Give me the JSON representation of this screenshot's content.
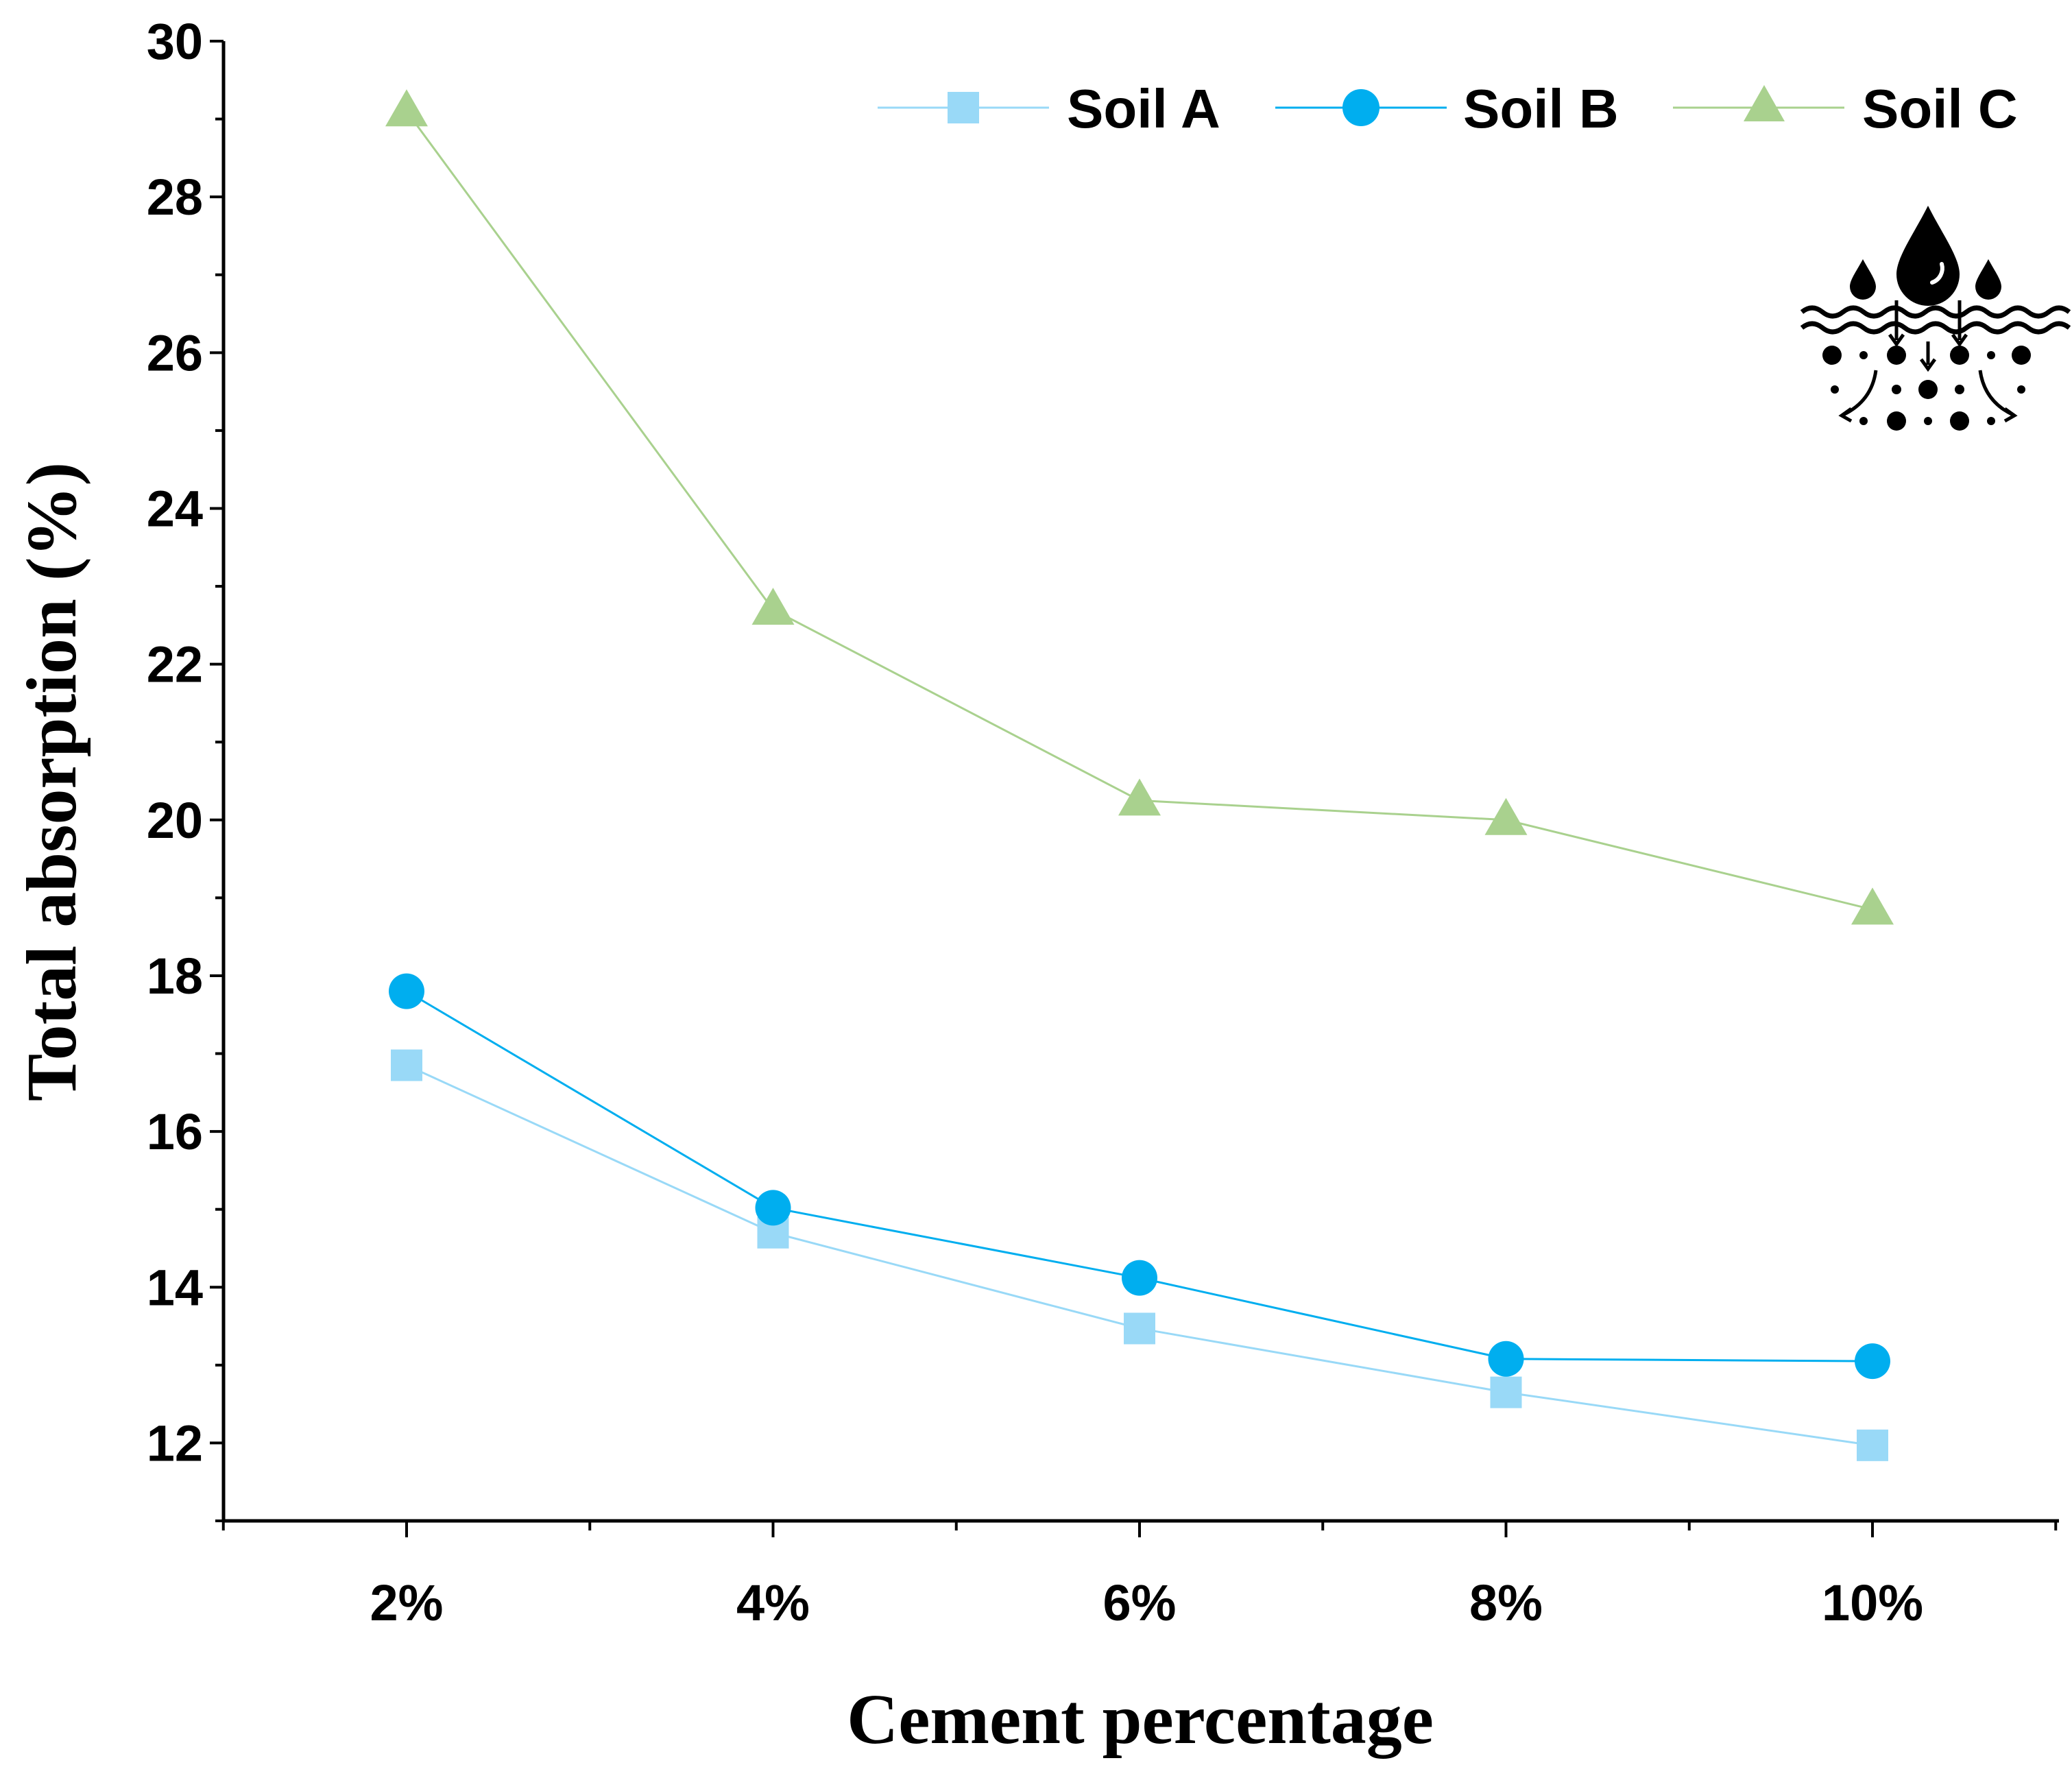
{
  "chart_data": {
    "type": "line",
    "title": "",
    "xlabel": "Cement percentage",
    "ylabel": "Total absorption (%)",
    "categories": [
      "2%",
      "4%",
      "6%",
      "8%",
      "10%"
    ],
    "ylim": [
      11,
      30
    ],
    "yticks": [
      12,
      14,
      16,
      18,
      20,
      22,
      24,
      26,
      28,
      30
    ],
    "ytick_labels": [
      "12",
      "14",
      "16",
      "18",
      "20",
      "22",
      "24",
      "26",
      "28",
      "30"
    ],
    "grid": false,
    "legend_position": "top-right",
    "series": [
      {
        "name": "Soil A",
        "marker": "square",
        "color": "#99d9f7",
        "values": [
          16.85,
          14.7,
          13.47,
          12.65,
          11.97
        ]
      },
      {
        "name": "Soil B",
        "marker": "circle",
        "color": "#00aeef",
        "values": [
          17.8,
          15.02,
          14.12,
          13.08,
          13.05
        ]
      },
      {
        "name": "Soil C",
        "marker": "triangle",
        "color": "#a9d18e",
        "values": [
          29.1,
          22.7,
          20.25,
          20.0,
          18.85
        ]
      }
    ],
    "icon": "water-absorption-icon"
  }
}
